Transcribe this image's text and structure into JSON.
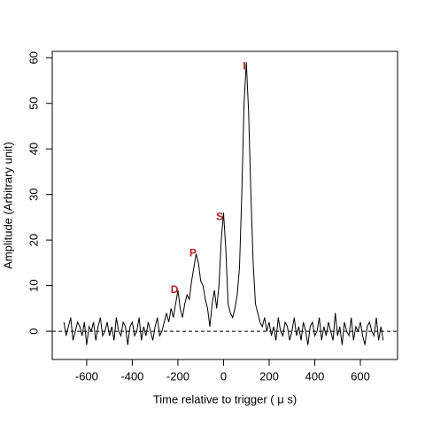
{
  "chart_data": {
    "type": "line",
    "xlabel": "Time relative to trigger ( μ s)",
    "ylabel": "Amplitude (Arbitrary unit)",
    "x": [
      -700,
      -690,
      -680,
      -670,
      -660,
      -650,
      -640,
      -630,
      -620,
      -610,
      -600,
      -590,
      -580,
      -570,
      -560,
      -550,
      -540,
      -530,
      -520,
      -510,
      -500,
      -490,
      -480,
      -470,
      -460,
      -450,
      -440,
      -430,
      -420,
      -410,
      -400,
      -390,
      -380,
      -370,
      -360,
      -350,
      -340,
      -330,
      -320,
      -310,
      -300,
      -290,
      -280,
      -270,
      -260,
      -250,
      -240,
      -230,
      -220,
      -210,
      -200,
      -190,
      -180,
      -170,
      -160,
      -150,
      -140,
      -130,
      -120,
      -110,
      -100,
      -90,
      -80,
      -70,
      -60,
      -50,
      -40,
      -30,
      -20,
      -10,
      0,
      10,
      20,
      30,
      40,
      50,
      60,
      70,
      80,
      90,
      100,
      110,
      120,
      130,
      140,
      150,
      160,
      170,
      180,
      190,
      200,
      210,
      220,
      230,
      240,
      250,
      260,
      270,
      280,
      290,
      300,
      310,
      320,
      330,
      340,
      350,
      360,
      370,
      380,
      390,
      400,
      410,
      420,
      430,
      440,
      450,
      460,
      470,
      480,
      490,
      500,
      510,
      520,
      530,
      540,
      550,
      560,
      570,
      580,
      590,
      600,
      610,
      620,
      630,
      640,
      650,
      660,
      670,
      680,
      690,
      700
    ],
    "series": [
      {
        "color": "#000000",
        "values": [
          2,
          -1,
          1,
          3,
          -2,
          0,
          2,
          1,
          -1,
          2,
          -3,
          1,
          0,
          2,
          -2,
          1,
          3,
          -1,
          0,
          2,
          -1,
          1,
          -2,
          3,
          0,
          -1,
          2,
          1,
          -3,
          1,
          2,
          -1,
          0,
          3,
          -2,
          1,
          -1,
          2,
          0,
          -2,
          1,
          3,
          -1,
          0,
          2,
          4,
          2,
          5,
          3,
          6,
          9,
          5,
          3,
          6,
          8,
          7,
          11,
          14,
          17,
          15,
          11,
          10,
          7,
          5,
          1,
          6,
          9,
          5,
          10,
          20,
          26,
          18,
          6,
          4,
          3,
          5,
          8,
          14,
          30,
          50,
          59,
          48,
          30,
          15,
          6,
          4,
          2,
          1,
          3,
          0,
          2,
          -1,
          1,
          -2,
          3,
          0,
          -1,
          2,
          1,
          -2,
          0,
          3,
          -1,
          1,
          -2,
          2,
          0,
          -3,
          1,
          2,
          -1,
          0,
          3,
          -2,
          1,
          -1,
          2,
          0,
          -2,
          4,
          -1,
          1,
          -3,
          2,
          0,
          -1,
          3,
          -2,
          1,
          0,
          2,
          -1,
          -3,
          1,
          2,
          0,
          -1,
          3,
          -2,
          1,
          -2
        ]
      }
    ],
    "xlim": [
      -751,
      763
    ],
    "ylim": [
      -6.2,
      61.4
    ],
    "xticks": [
      -600,
      -400,
      -200,
      0,
      200,
      400,
      600
    ],
    "yticks": [
      0,
      10,
      20,
      30,
      40,
      50,
      60
    ],
    "hline": 0,
    "annotation_color": "#b22222",
    "annotations": [
      {
        "text": "D",
        "x": -215,
        "y": 9
      },
      {
        "text": "P",
        "x": -134,
        "y": 17
      },
      {
        "text": "S",
        "x": -17,
        "y": 25
      },
      {
        "text": "I",
        "x": 91,
        "y": 58
      }
    ]
  }
}
